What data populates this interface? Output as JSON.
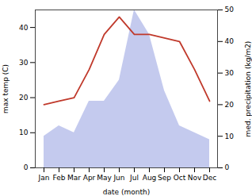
{
  "chart_data": {
    "type": "line",
    "categories": [
      "Jan",
      "Feb",
      "Mar",
      "Apr",
      "May",
      "Jun",
      "Jul",
      "Aug",
      "Sep",
      "Oct",
      "Nov",
      "Dec"
    ],
    "series": [
      {
        "type": "area",
        "color": "#b0b8e8",
        "values": [
          9,
          12,
          10,
          19,
          19,
          25,
          45,
          38,
          22,
          12,
          10,
          8
        ]
      },
      {
        "type": "line",
        "color": "#c0392b",
        "values": [
          18,
          19,
          20,
          28,
          38,
          43,
          38,
          38,
          37,
          36,
          28,
          19
        ]
      }
    ],
    "xlabel": "date (month)",
    "ylabel": "max temp (C)",
    "y2label": "med. precipitation (kg/m2)",
    "ylim": [
      0,
      45
    ],
    "yticks": [
      0,
      10,
      20,
      30,
      40
    ],
    "y2lim": [
      0,
      50
    ],
    "y2ticks": [
      0,
      10,
      20,
      30,
      40,
      50
    ],
    "grid": false
  }
}
